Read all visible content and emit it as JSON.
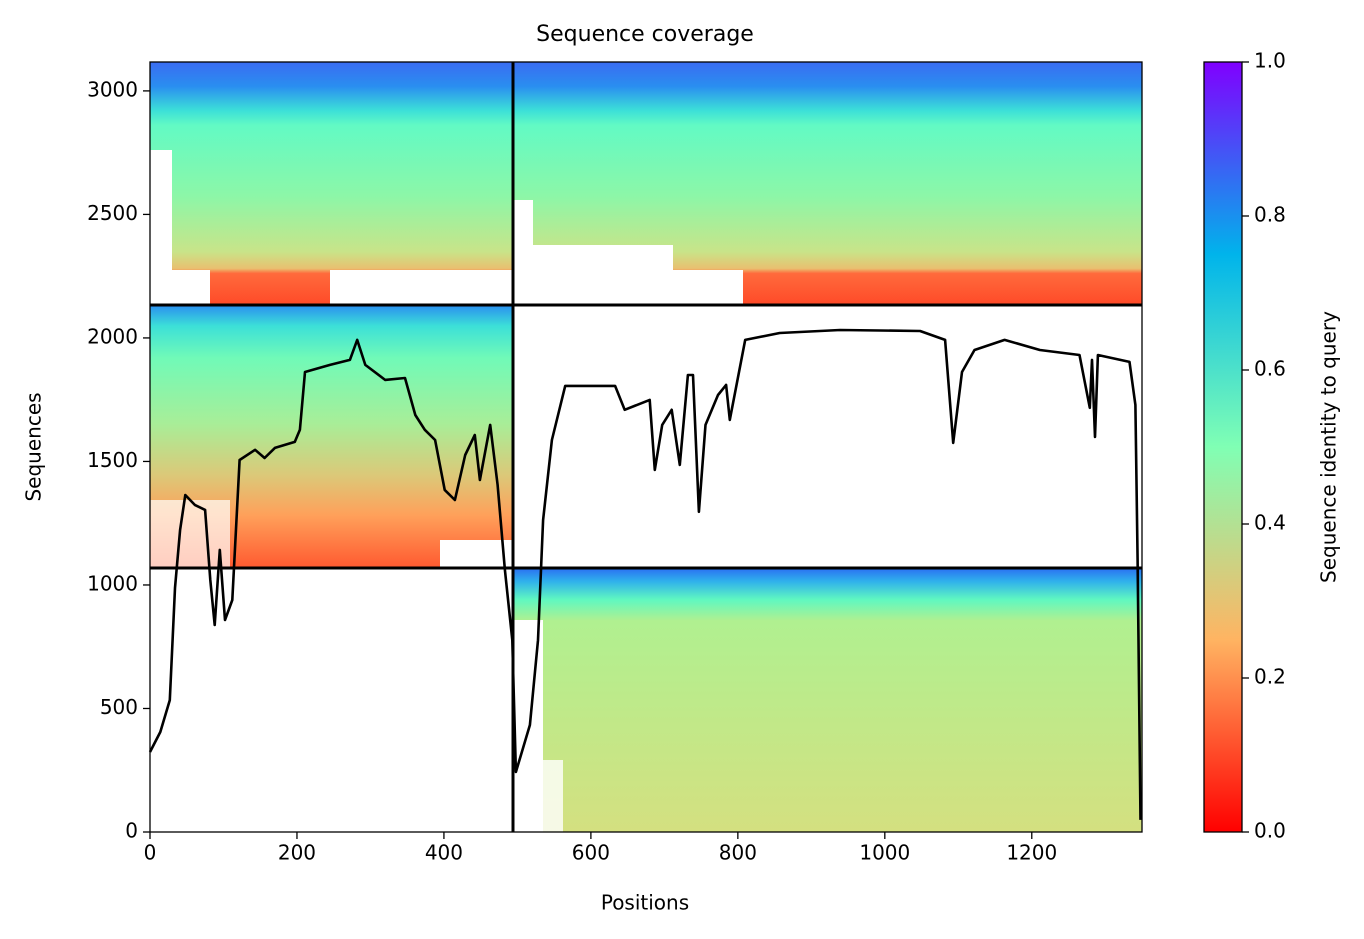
{
  "chart_data": {
    "type": "line",
    "title": "Sequence coverage",
    "xlabel": "Positions",
    "ylabel": "Sequences",
    "x": [
      0,
      14,
      27,
      34,
      41,
      48,
      61,
      75,
      82,
      88,
      95,
      102,
      112,
      122,
      143,
      156,
      170,
      197,
      204,
      211,
      245,
      272,
      282,
      293,
      320,
      347,
      361,
      374,
      388,
      401,
      415,
      429,
      442,
      449,
      463,
      473,
      483,
      493,
      498,
      517,
      528,
      535,
      547,
      565,
      633,
      646,
      680,
      687,
      697,
      710,
      721,
      732,
      739,
      747,
      756,
      773,
      784,
      789,
      810,
      857,
      939,
      1048,
      1082,
      1093,
      1105,
      1122,
      1163,
      1211,
      1265,
      1279,
      1282,
      1286,
      1290,
      1333,
      1341,
      1344,
      1348
    ],
    "series": [
      {
        "color": "#000000",
        "values": [
          324,
          405,
          534,
          988,
          1223,
          1364,
          1324,
          1304,
          1020,
          838,
          1142,
          858,
          939,
          1506,
          1547,
          1514,
          1555,
          1579,
          1628,
          1862,
          1891,
          1911,
          1992,
          1891,
          1830,
          1838,
          1688,
          1628,
          1587,
          1385,
          1344,
          1526,
          1607,
          1425,
          1648,
          1405,
          1061,
          777,
          243,
          433,
          777,
          1263,
          1587,
          1806,
          1806,
          1709,
          1749,
          1466,
          1648,
          1709,
          1486,
          1850,
          1850,
          1296,
          1648,
          1769,
          1810,
          1668,
          1992,
          2020,
          2032,
          2028,
          1992,
          1575,
          1862,
          1951,
          1992,
          1951,
          1931,
          1717,
          1911,
          1599,
          1931,
          1903,
          1729,
          1101,
          49
        ]
      }
    ],
    "xlim": [
      0,
      1350
    ],
    "xticks": [
      0,
      200,
      400,
      600,
      800,
      1000,
      1200
    ],
    "ylim": [
      0,
      3117
    ],
    "yticks": [
      0,
      500,
      1000,
      1500,
      2000,
      2500,
      3000
    ],
    "colorbar": {
      "label": "Sequence identity to query",
      "lim": [
        0,
        1
      ],
      "ticks": [
        {
          "value": 0,
          "label": "0.0"
        },
        0.2,
        0.4,
        0.6,
        0.8,
        {
          "value": 1,
          "label": "1.0"
        }
      ]
    }
  }
}
